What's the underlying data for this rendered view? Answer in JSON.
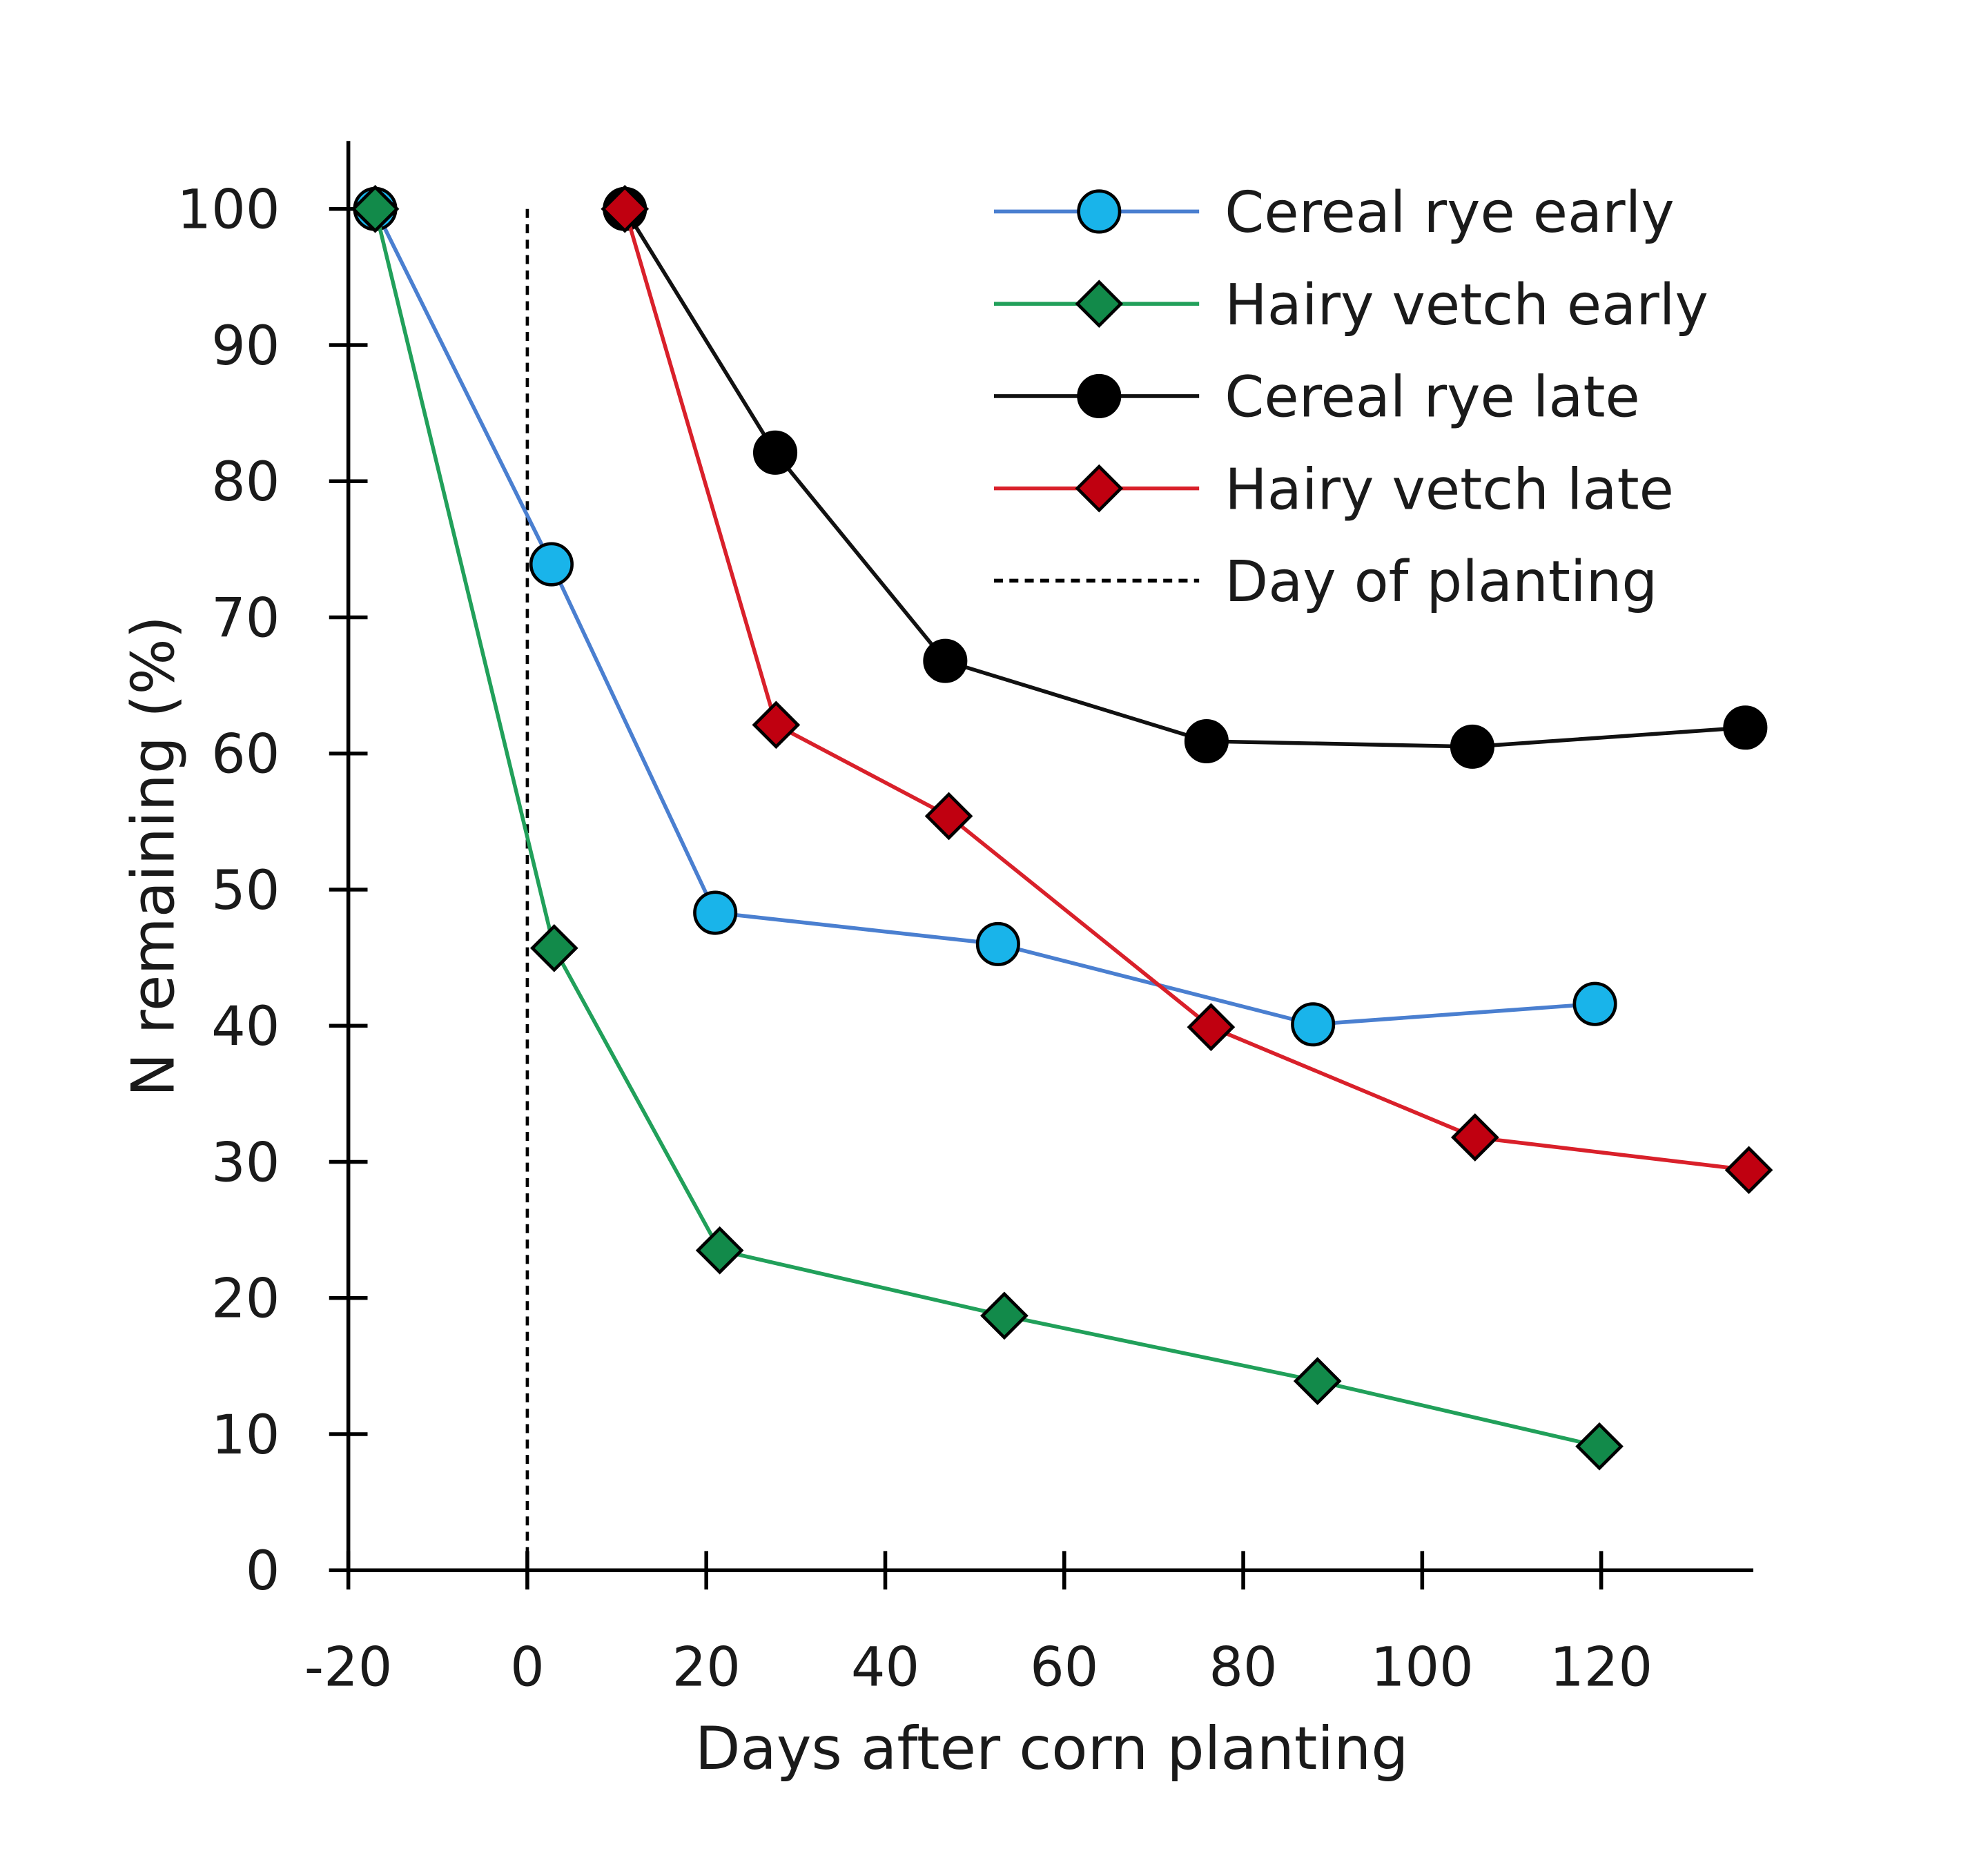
{
  "chart_data": {
    "type": "line",
    "title": "",
    "xlabel": "Days after corn planting",
    "ylabel": "N remaining (%)",
    "xlim": [
      -20,
      137
    ],
    "ylim": [
      0,
      100
    ],
    "xticks": [
      -20,
      0,
      20,
      40,
      60,
      80,
      100,
      120
    ],
    "yticks": [
      0,
      10,
      20,
      30,
      40,
      50,
      60,
      70,
      80,
      90,
      100
    ],
    "grid": false,
    "legend_position": "top-right",
    "series": [
      {
        "name": "Cereal rye early",
        "color": "#4a7fd0",
        "marker": "circle",
        "marker_fill": "#19b4ea",
        "x": [
          -17,
          2.7,
          21,
          52.6,
          87.8,
          119.3
        ],
        "y": [
          100,
          73.9,
          48.3,
          46.0,
          40.1,
          41.6
        ]
      },
      {
        "name": "Hairy vetch early",
        "color": "#21a05a",
        "marker": "diamond",
        "marker_fill": "#128a4a",
        "x": [
          -17,
          3,
          21.5,
          53.3,
          88.3,
          119.8
        ],
        "y": [
          100,
          45.7,
          23.5,
          18.7,
          13.9,
          9.1
        ]
      },
      {
        "name": "Cereal rye late",
        "color": "#111111",
        "marker": "circle",
        "marker_fill": "#000000",
        "x": [
          10.9,
          27.7,
          46.7,
          75.9,
          105.6,
          136.1
        ],
        "y": [
          100,
          82.1,
          66.8,
          60.9,
          60.5,
          61.9
        ]
      },
      {
        "name": "Hairy vetch late",
        "color": "#d9202a",
        "marker": "diamond",
        "marker_fill": "#c00010",
        "x": [
          10.9,
          27.8,
          47.1,
          76.4,
          105.9,
          136.5
        ],
        "y": [
          100,
          62.1,
          55.4,
          39.9,
          31.8,
          29.4
        ]
      }
    ],
    "reference_lines": [
      {
        "name": "Day of planting",
        "orientation": "vertical",
        "x": 0,
        "y_range": [
          0,
          100
        ],
        "style": "dashed",
        "color": "#000000"
      }
    ]
  }
}
